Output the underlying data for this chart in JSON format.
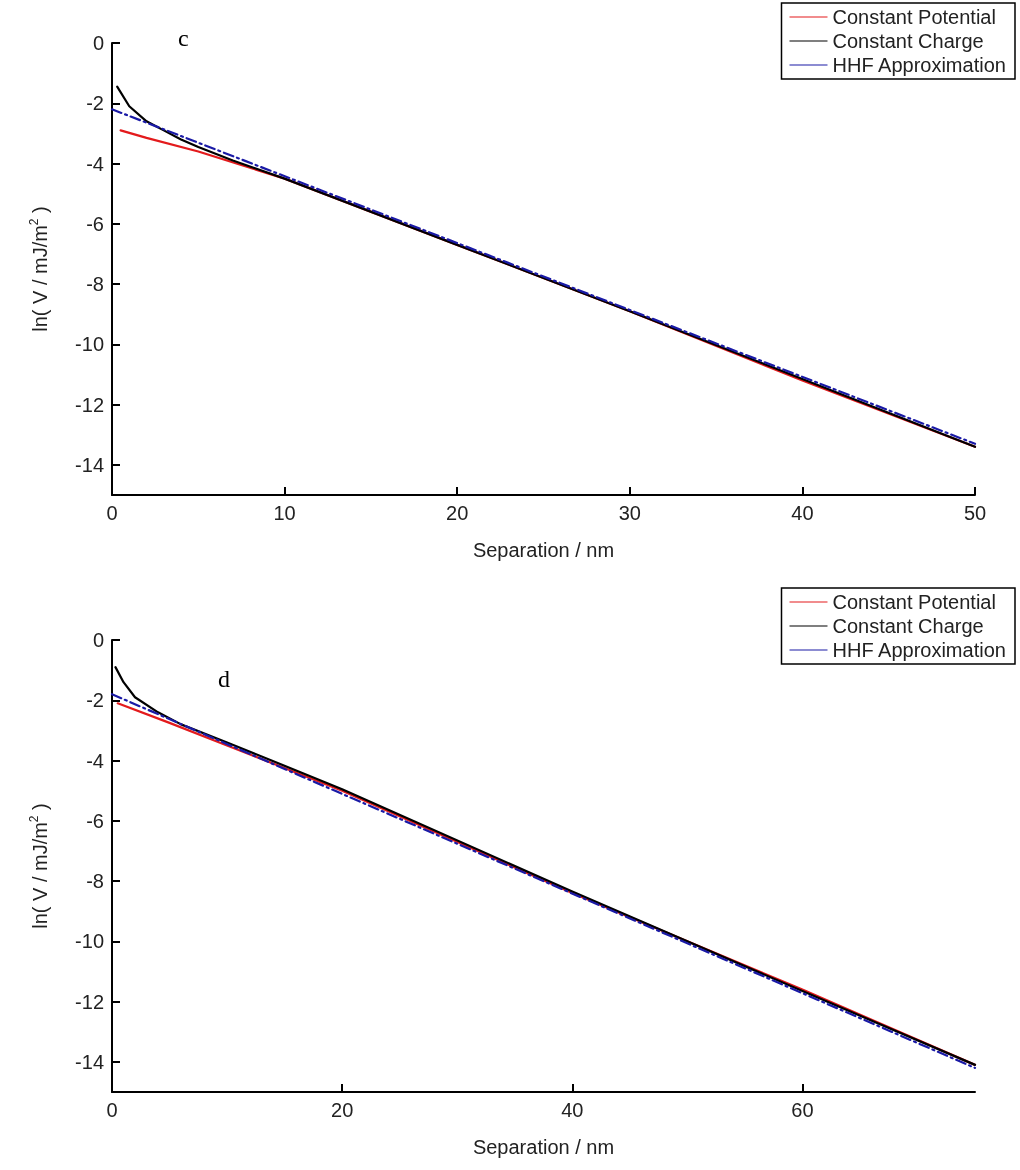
{
  "chart_data": [
    {
      "type": "line",
      "xlabel": "Separation / nm",
      "ylabel": "ln( V / mJ/m$^{2}$ )",
      "annotations": [
        "c"
      ],
      "xlim": [
        0,
        50
      ],
      "xticks": [
        0,
        10,
        20,
        30,
        40,
        50
      ],
      "ylim": [
        -15,
        0
      ],
      "yticks": [
        -14,
        -12,
        -10,
        -8,
        -6,
        -4,
        -2,
        0
      ],
      "legend": "top right",
      "grid": false,
      "marker": "none",
      "series": [
        {
          "name": "Constant Potential",
          "color": "#e31a1c",
          "line_style": "solid",
          "x": [
            0.5,
            2,
            5,
            10,
            20,
            30,
            40,
            50
          ],
          "values": [
            -2.9,
            -3.15,
            -3.6,
            -4.5,
            -6.7,
            -8.9,
            -11.2,
            -13.4
          ]
        },
        {
          "name": "Constant Charge",
          "color": "#000000",
          "line_style": "solid",
          "x": [
            0.3,
            1,
            2,
            3,
            4,
            5,
            7,
            10,
            20,
            30,
            40,
            50
          ],
          "values": [
            -1.45,
            -2.1,
            -2.6,
            -2.9,
            -3.2,
            -3.45,
            -3.9,
            -4.5,
            -6.7,
            -8.9,
            -11.15,
            -13.4
          ]
        },
        {
          "name": "HHF Approximation",
          "color": "#1a1aa6",
          "line_style": "dashed",
          "x": [
            0,
            50
          ],
          "values": [
            -2.2,
            -13.3
          ]
        }
      ]
    },
    {
      "type": "line",
      "xlabel": "Separation / nm",
      "ylabel": "ln( V / mJ/m$^{2}$ )",
      "annotations": [
        "d"
      ],
      "xlim": [
        0,
        75
      ],
      "xticks": [
        0,
        20,
        40,
        60
      ],
      "ylim": [
        -15,
        0
      ],
      "yticks": [
        -14,
        -12,
        -10,
        -8,
        -6,
        -4,
        -2,
        0
      ],
      "legend": "top right",
      "grid": false,
      "marker": "none",
      "series": [
        {
          "name": "Constant Potential",
          "color": "#e31a1c",
          "line_style": "solid",
          "x": [
            0.5,
            5,
            10,
            20,
            40,
            60,
            75
          ],
          "values": [
            -2.1,
            -2.75,
            -3.5,
            -5.0,
            -8.4,
            -11.6,
            -14.1
          ]
        },
        {
          "name": "Constant Charge",
          "color": "#000000",
          "line_style": "solid",
          "x": [
            0.3,
            1,
            2,
            4,
            6,
            10,
            20,
            40,
            60,
            75
          ],
          "values": [
            -0.9,
            -1.4,
            -1.9,
            -2.4,
            -2.8,
            -3.4,
            -4.95,
            -8.35,
            -11.65,
            -14.1
          ]
        },
        {
          "name": "HHF Approximation",
          "color": "#1a1aa6",
          "line_style": "dashed",
          "x": [
            0,
            75
          ],
          "values": [
            -1.8,
            -14.2
          ]
        }
      ]
    }
  ]
}
